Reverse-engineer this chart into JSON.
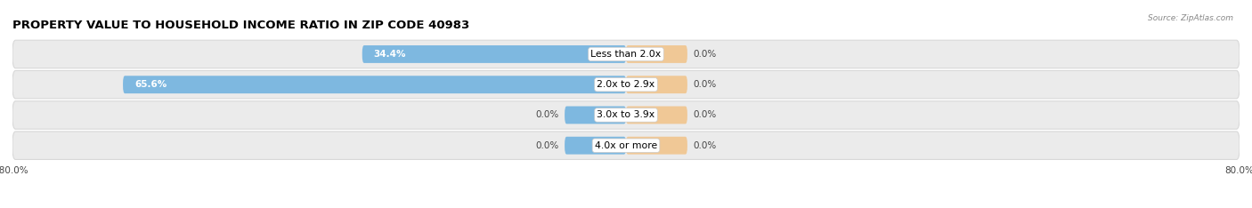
{
  "title": "PROPERTY VALUE TO HOUSEHOLD INCOME RATIO IN ZIP CODE 40983",
  "source": "Source: ZipAtlas.com",
  "categories": [
    "Less than 2.0x",
    "2.0x to 2.9x",
    "3.0x to 3.9x",
    "4.0x or more"
  ],
  "without_mortgage": [
    34.4,
    65.6,
    0.0,
    0.0
  ],
  "with_mortgage": [
    0.0,
    0.0,
    0.0,
    0.0
  ],
  "bar_color_left": "#7eb8e0",
  "bar_color_right": "#f0c896",
  "row_bg_color": "#ebebeb",
  "row_bg_border": "#d8d8d8",
  "xlim": [
    -80,
    80
  ],
  "xtick_positions": [
    -80,
    80
  ],
  "figsize": [
    14.06,
    2.34
  ],
  "dpi": 100,
  "title_fontsize": 9.5,
  "label_fontsize": 7.5,
  "cat_fontsize": 7.8,
  "legend_fontsize": 7.5,
  "bar_height": 0.58,
  "small_bar_width": 8.0,
  "label_inside_threshold": 15.0
}
